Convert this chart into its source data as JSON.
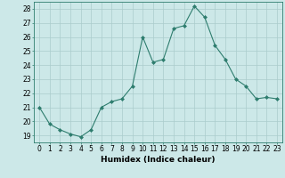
{
  "x": [
    0,
    1,
    2,
    3,
    4,
    5,
    6,
    7,
    8,
    9,
    10,
    11,
    12,
    13,
    14,
    15,
    16,
    17,
    18,
    19,
    20,
    21,
    22,
    23
  ],
  "y": [
    21.0,
    19.8,
    19.4,
    19.1,
    18.9,
    19.4,
    21.0,
    21.4,
    21.6,
    22.5,
    26.0,
    24.2,
    24.4,
    26.6,
    26.8,
    28.2,
    27.4,
    25.4,
    24.4,
    23.0,
    22.5,
    21.6,
    21.7,
    21.6
  ],
  "xlabel": "Humidex (Indice chaleur)",
  "xlim": [
    -0.5,
    23.5
  ],
  "ylim": [
    18.5,
    28.5
  ],
  "yticks": [
    19,
    20,
    21,
    22,
    23,
    24,
    25,
    26,
    27,
    28
  ],
  "xticks": [
    0,
    1,
    2,
    3,
    4,
    5,
    6,
    7,
    8,
    9,
    10,
    11,
    12,
    13,
    14,
    15,
    16,
    17,
    18,
    19,
    20,
    21,
    22,
    23
  ],
  "line_color": "#2e7d6e",
  "marker": "D",
  "marker_size": 2.0,
  "bg_color": "#cce8e8",
  "grid_color": "#aacccc",
  "xlabel_fontsize": 6.5,
  "tick_fontsize": 5.5
}
